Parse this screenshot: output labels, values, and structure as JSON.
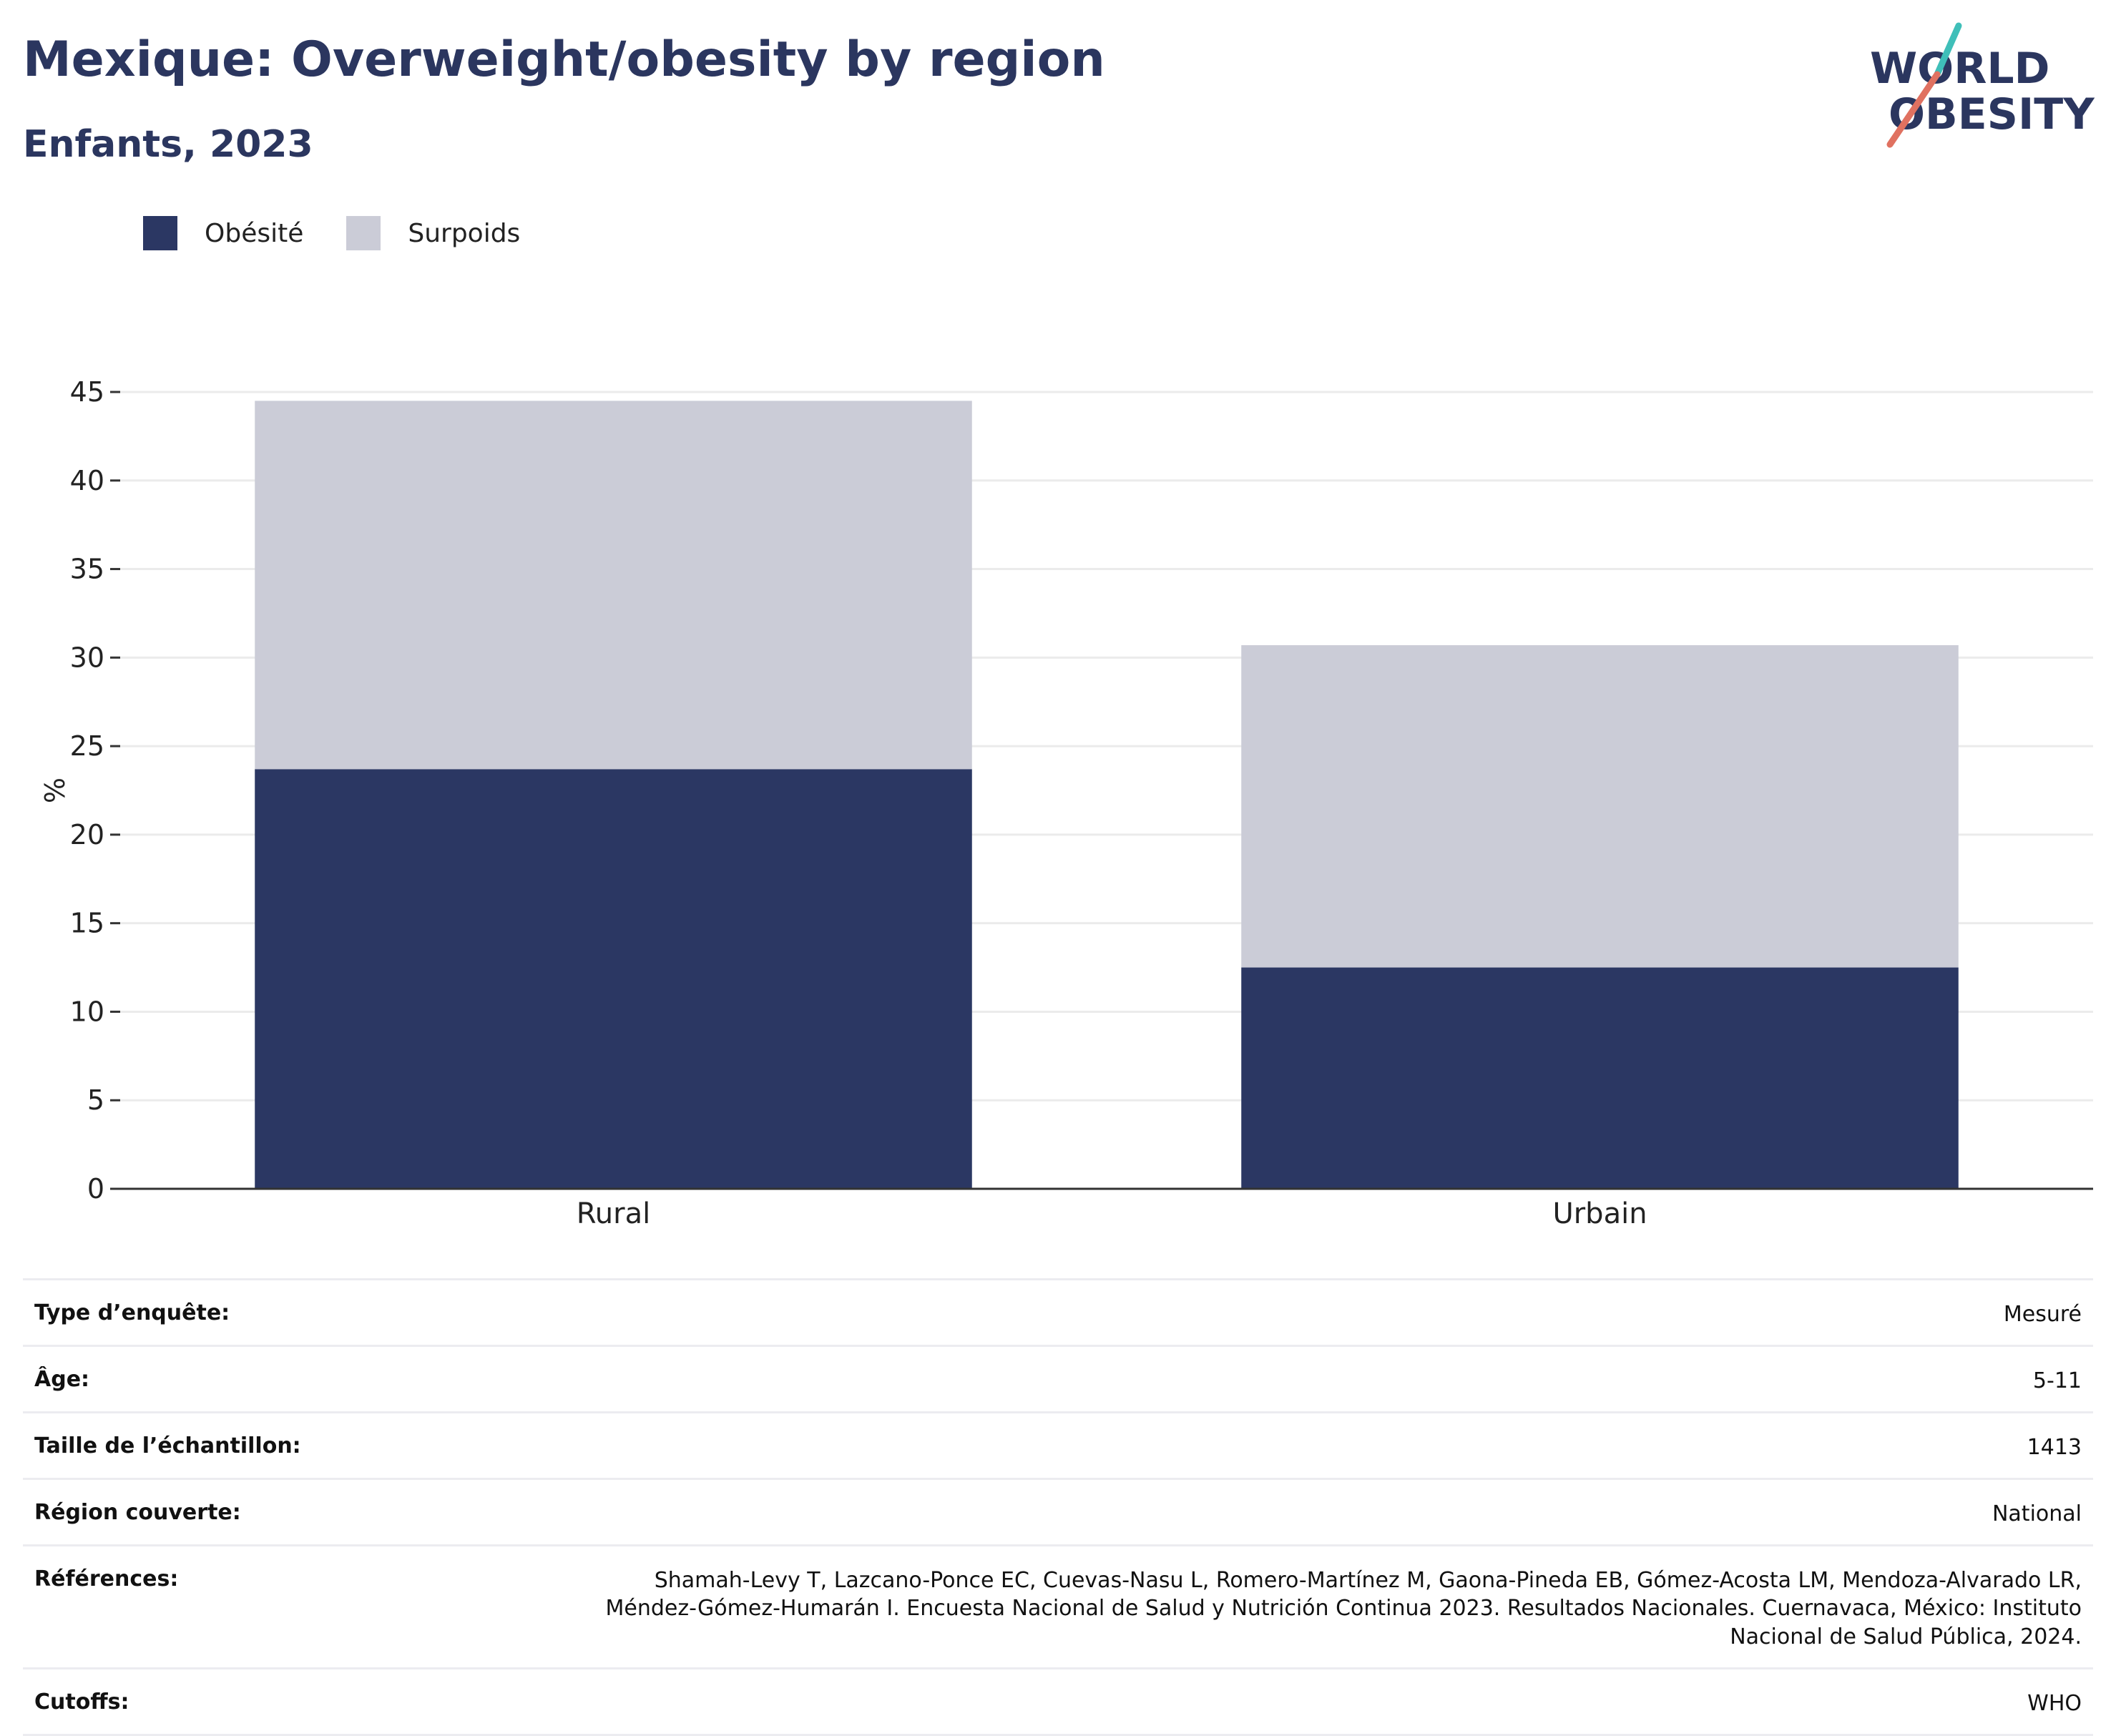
{
  "header": {
    "title": "Mexique: Overweight/obesity by region",
    "subtitle": "Enfants, 2023"
  },
  "logo": {
    "line1": "WORLD",
    "line2": "OBESITY",
    "colors": {
      "text": "#2b365f",
      "slash_top": "#3fbfb9",
      "slash_bottom": "#e07160"
    }
  },
  "colors": {
    "obesity": "#2b3763",
    "overweight": "#cbccd7",
    "grid": "#ebebeb",
    "axis": "#333333"
  },
  "chart_data": {
    "type": "bar",
    "stacked": true,
    "categories": [
      "Rural",
      "Urbain"
    ],
    "series": [
      {
        "name": "Obésité",
        "values": [
          23.7,
          12.5
        ]
      },
      {
        "name": "Surpoids",
        "values": [
          20.8,
          18.2
        ]
      }
    ],
    "ylabel": "%",
    "xlabel": "",
    "ylim": [
      0,
      45
    ],
    "yticks": [
      0,
      5,
      10,
      15,
      20,
      25,
      30,
      35,
      40,
      45
    ],
    "grid": true,
    "legend": "top-left"
  },
  "info": [
    {
      "label": "Type d’enquête:",
      "value": "Mesuré"
    },
    {
      "label": "Âge:",
      "value": "5-11"
    },
    {
      "label": "Taille de l’échantillon:",
      "value": "1413"
    },
    {
      "label": "Région couverte:",
      "value": "National"
    },
    {
      "label": "Références:",
      "value": "Shamah-Levy T, Lazcano-Ponce EC, Cuevas-Nasu L, Romero-Martínez M, Gaona-Pineda EB, Gómez-Acosta LM, Mendoza-Alvarado LR, Méndez-Gómez-Humarán I. Encuesta Nacional de Salud y Nutrición Continua 2023. Resultados Nacionales. Cuernavaca, México: Instituto Nacional de Salud Pública, 2024."
    },
    {
      "label": "Cutoffs:",
      "value": "WHO"
    }
  ]
}
